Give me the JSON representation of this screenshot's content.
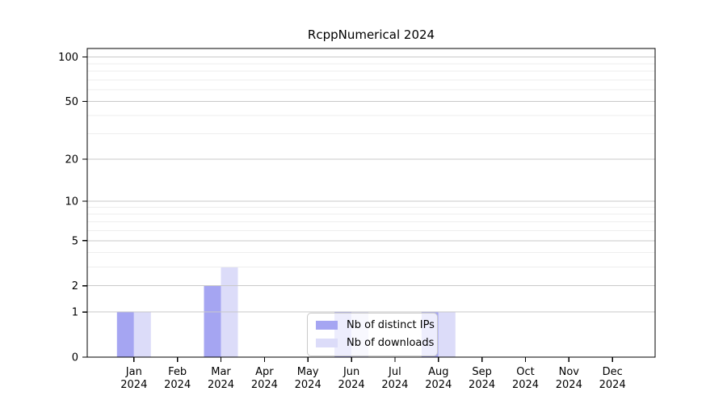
{
  "figure": {
    "background": "#ffffff"
  },
  "chart_data": {
    "type": "bar",
    "title": "RcppNumerical 2024",
    "categories": [
      "Jan",
      "Feb",
      "Mar",
      "Apr",
      "May",
      "Jun",
      "Jul",
      "Aug",
      "Sep",
      "Oct",
      "Nov",
      "Dec"
    ],
    "x_sublabel": "2024",
    "series": [
      {
        "name": "Nb of distinct IPs",
        "color": "#a5a5f2",
        "values": [
          1,
          0,
          2,
          0,
          0,
          1,
          0,
          1,
          0,
          0,
          0,
          0
        ]
      },
      {
        "name": "Nb of downloads",
        "color": "#dcdcf9",
        "values": [
          1,
          0,
          3,
          0,
          0,
          1,
          0,
          1,
          0,
          0,
          0,
          0
        ]
      }
    ],
    "y_scale": "log1p",
    "y_ticks": [
      0,
      1,
      2,
      5,
      10,
      20,
      50,
      100
    ],
    "y_minor_gridlines": [
      3,
      4,
      6,
      7,
      8,
      9,
      30,
      40,
      60,
      70,
      80,
      90
    ],
    "y_max": 114,
    "ylim": [
      0,
      114
    ],
    "grid": "horizontal",
    "xlabel": "",
    "ylabel": "",
    "legend": {
      "position": "lower-center"
    },
    "colors": {
      "axis": "#000000",
      "major_grid": "#c9c9c9",
      "minor_grid": "#eeeeee",
      "legend_border": "#c9c9c9"
    }
  }
}
